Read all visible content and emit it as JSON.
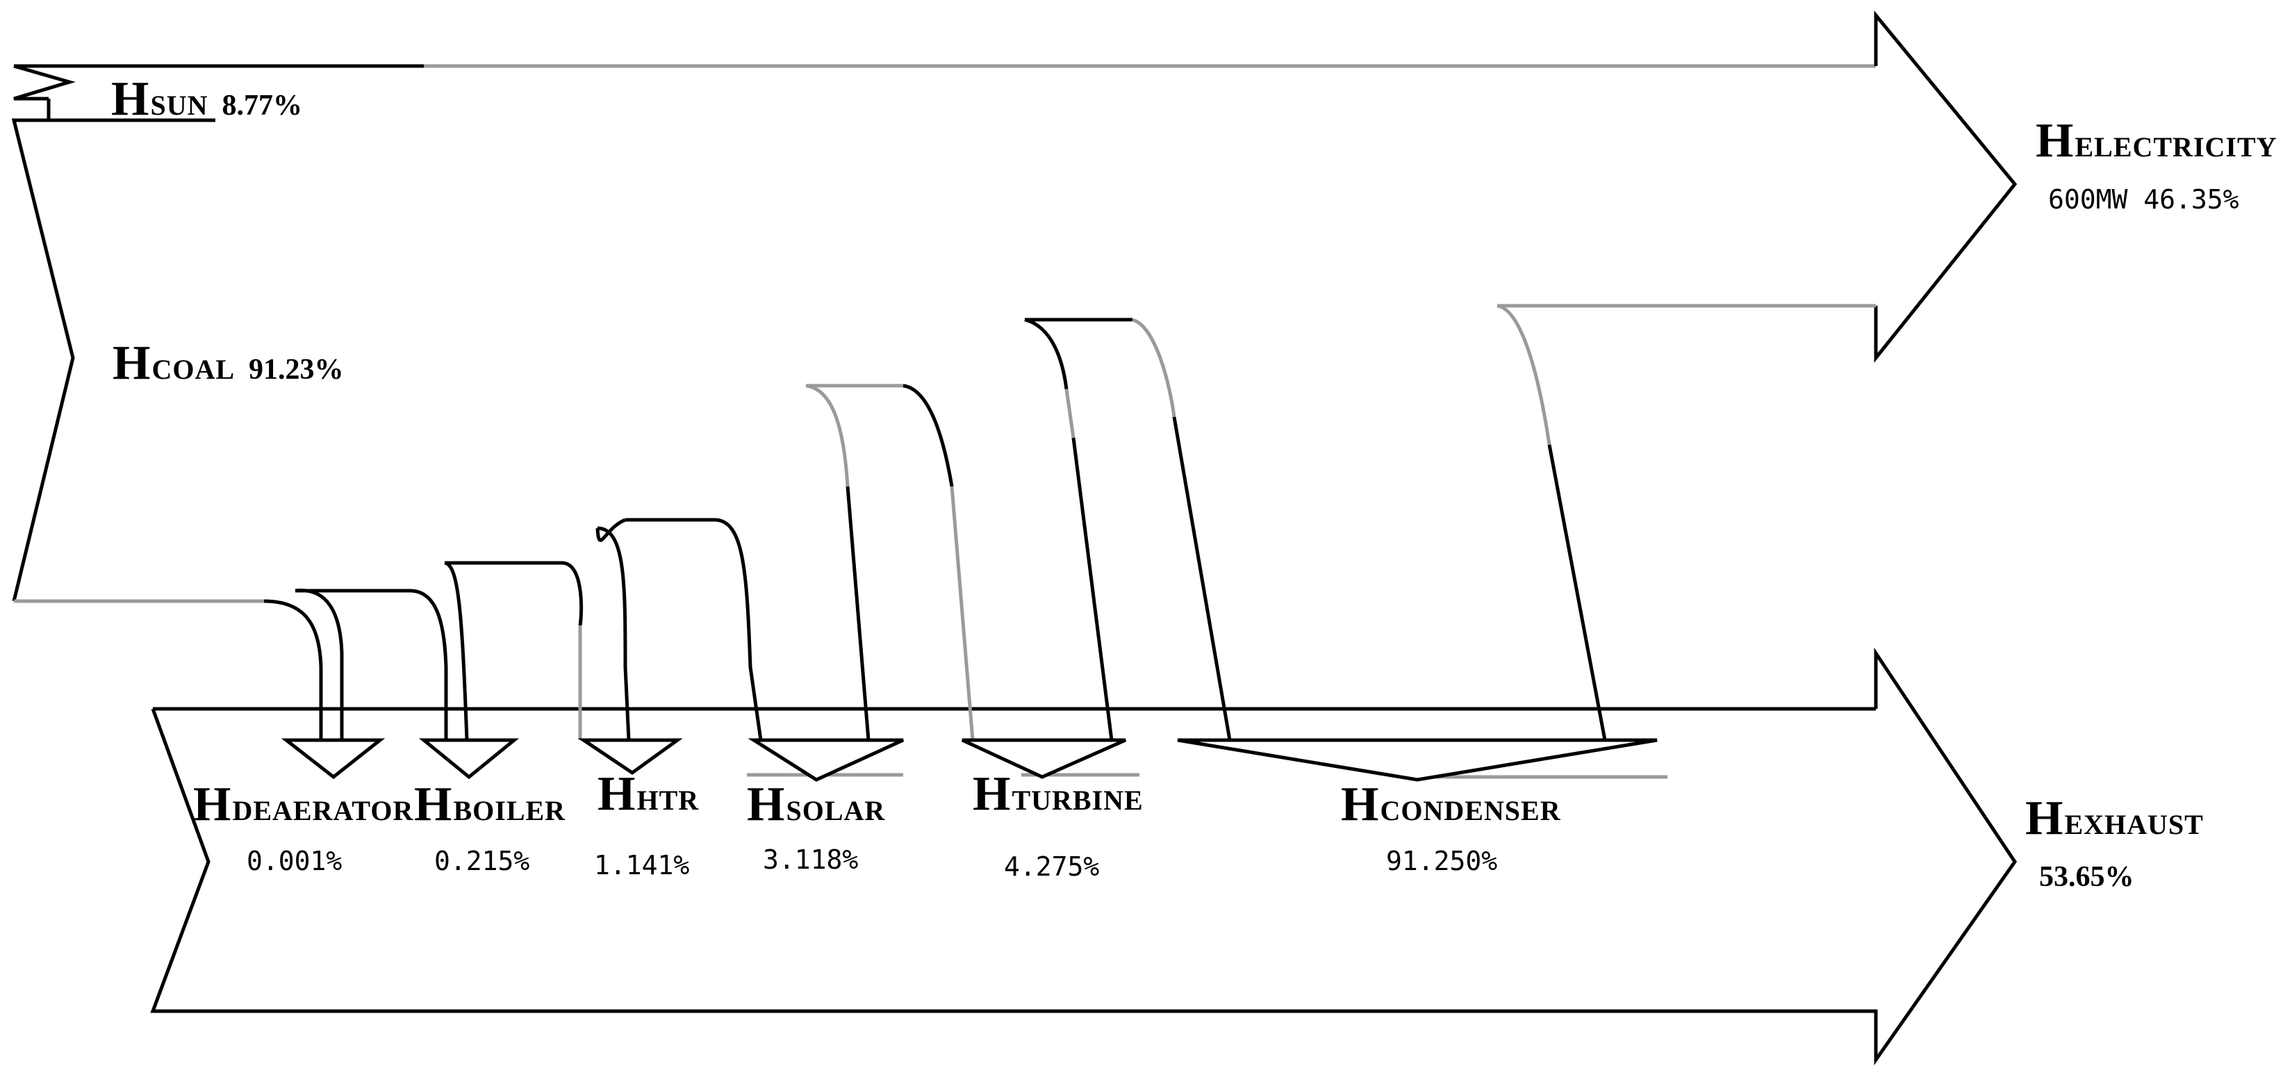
{
  "inputs": [
    {
      "id": "sun",
      "letter": "H",
      "sub": "SUN",
      "value": "8.77%"
    },
    {
      "id": "coal",
      "letter": "H",
      "sub": "COAL",
      "value": "91.23%"
    }
  ],
  "outputs": {
    "electricity": {
      "letter": "H",
      "sub": "ELECTRICITY",
      "value": "600MW 46.35%"
    },
    "exhaust": {
      "letter": "H",
      "sub": "EXHAUST",
      "value": "53.65%"
    }
  },
  "losses": [
    {
      "id": "deaerator",
      "letter": "H",
      "sub": "DEAERATOR",
      "value": "0.001%"
    },
    {
      "id": "boiler",
      "letter": "H",
      "sub": "BOILER",
      "value": "0.215%"
    },
    {
      "id": "htr",
      "letter": "H",
      "sub": "HTR",
      "value": "1.141%"
    },
    {
      "id": "solar",
      "letter": "H",
      "sub": "SOLAR",
      "value": "3.118%"
    },
    {
      "id": "turbine",
      "letter": "H",
      "sub": "TURBINE",
      "value": "4.275%"
    },
    {
      "id": "condenser",
      "letter": "H",
      "sub": "CONDENSER",
      "value": "91.250%"
    }
  ]
}
